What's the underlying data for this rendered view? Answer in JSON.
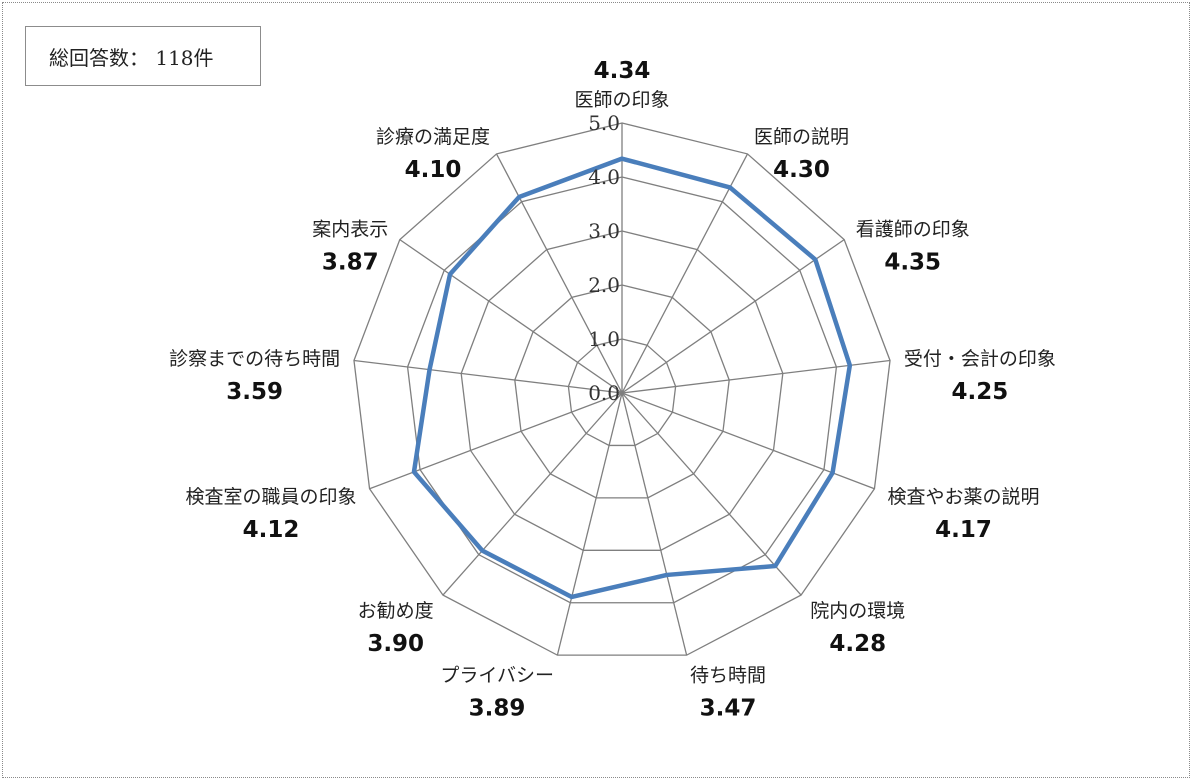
{
  "summary": {
    "label": "総回答数：",
    "count": "118件"
  },
  "chart_data": {
    "type": "radar",
    "categories": [
      "医師の印象",
      "医師の説明",
      "看護師の印象",
      "受付・会計の印象",
      "検査やお薬の説明",
      "院内の環境",
      "待ち時間",
      "プライバシー",
      "お勧め度",
      "検査室の職員の印象",
      "診察までの待ち時間",
      "案内表示",
      "診療の満足度"
    ],
    "values": [
      4.34,
      4.3,
      4.35,
      4.25,
      4.17,
      4.28,
      3.47,
      3.89,
      3.9,
      4.12,
      3.59,
      3.87,
      4.1
    ],
    "value_labels": [
      "4.34",
      "4.30",
      "4.35",
      "4.25",
      "4.17",
      "4.28",
      "3.47",
      "3.89",
      "3.90",
      "4.12",
      "3.59",
      "3.87",
      "4.10"
    ],
    "ticks": [
      "0.0",
      "1.0",
      "2.0",
      "3.0",
      "4.0",
      "5.0"
    ],
    "rlim": [
      0,
      5
    ],
    "grid": true,
    "legend": "none",
    "colors": {
      "series": "#4a7ebb",
      "grid": "#7f7f7f"
    }
  }
}
